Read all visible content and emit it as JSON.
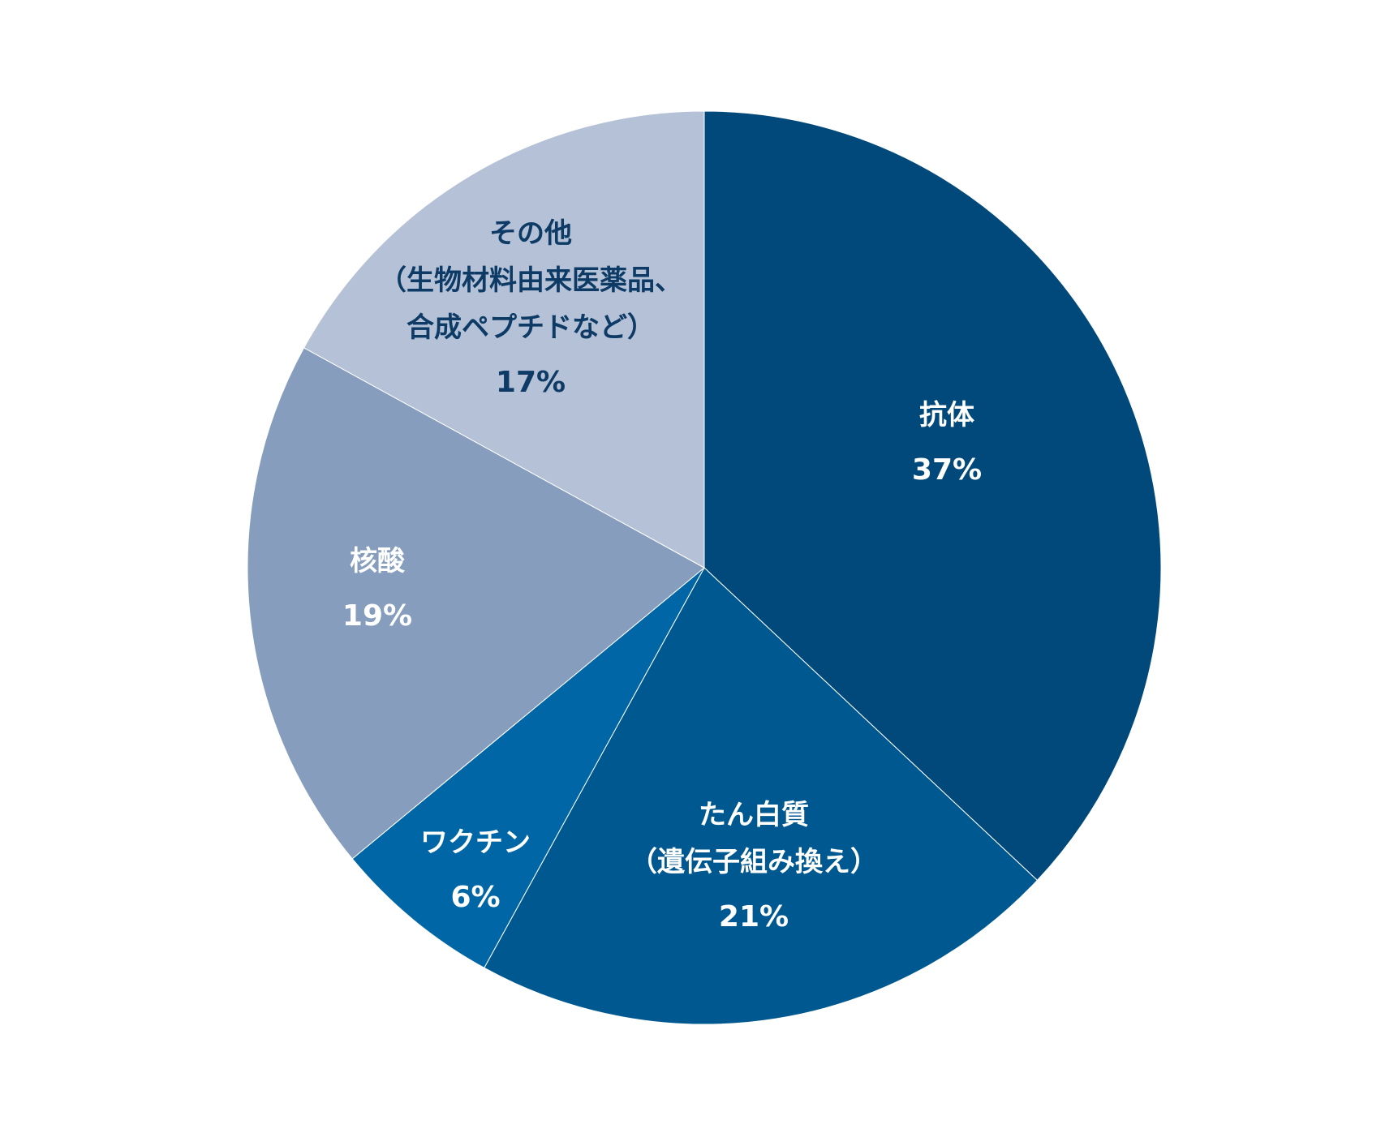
{
  "chart_data": {
    "type": "pie",
    "title": "",
    "start": "top",
    "direction": "clockwise",
    "slices": [
      {
        "name_lines": [
          "抗体"
        ],
        "value": 37,
        "value_label": "37%",
        "color": "#00497a",
        "text_color": "#ffffff"
      },
      {
        "name_lines": [
          "たん白質",
          "（遺伝子組み換え）"
        ],
        "value": 21,
        "value_label": "21%",
        "color": "#005891",
        "text_color": "#ffffff"
      },
      {
        "name_lines": [
          "ワクチン"
        ],
        "value": 6,
        "value_label": "6%",
        "color": "#0066a6",
        "text_color": "#ffffff"
      },
      {
        "name_lines": [
          "核酸"
        ],
        "value": 19,
        "value_label": "19%",
        "color": "#869dbe",
        "text_color": "#ffffff"
      },
      {
        "name_lines": [
          "その他",
          "（生物材料由来医薬品、",
          "合成ペプチドなど）"
        ],
        "value": 17,
        "value_label": "17%",
        "color": "#b4c1d6",
        "text_color": "#0d3b66"
      }
    ]
  }
}
